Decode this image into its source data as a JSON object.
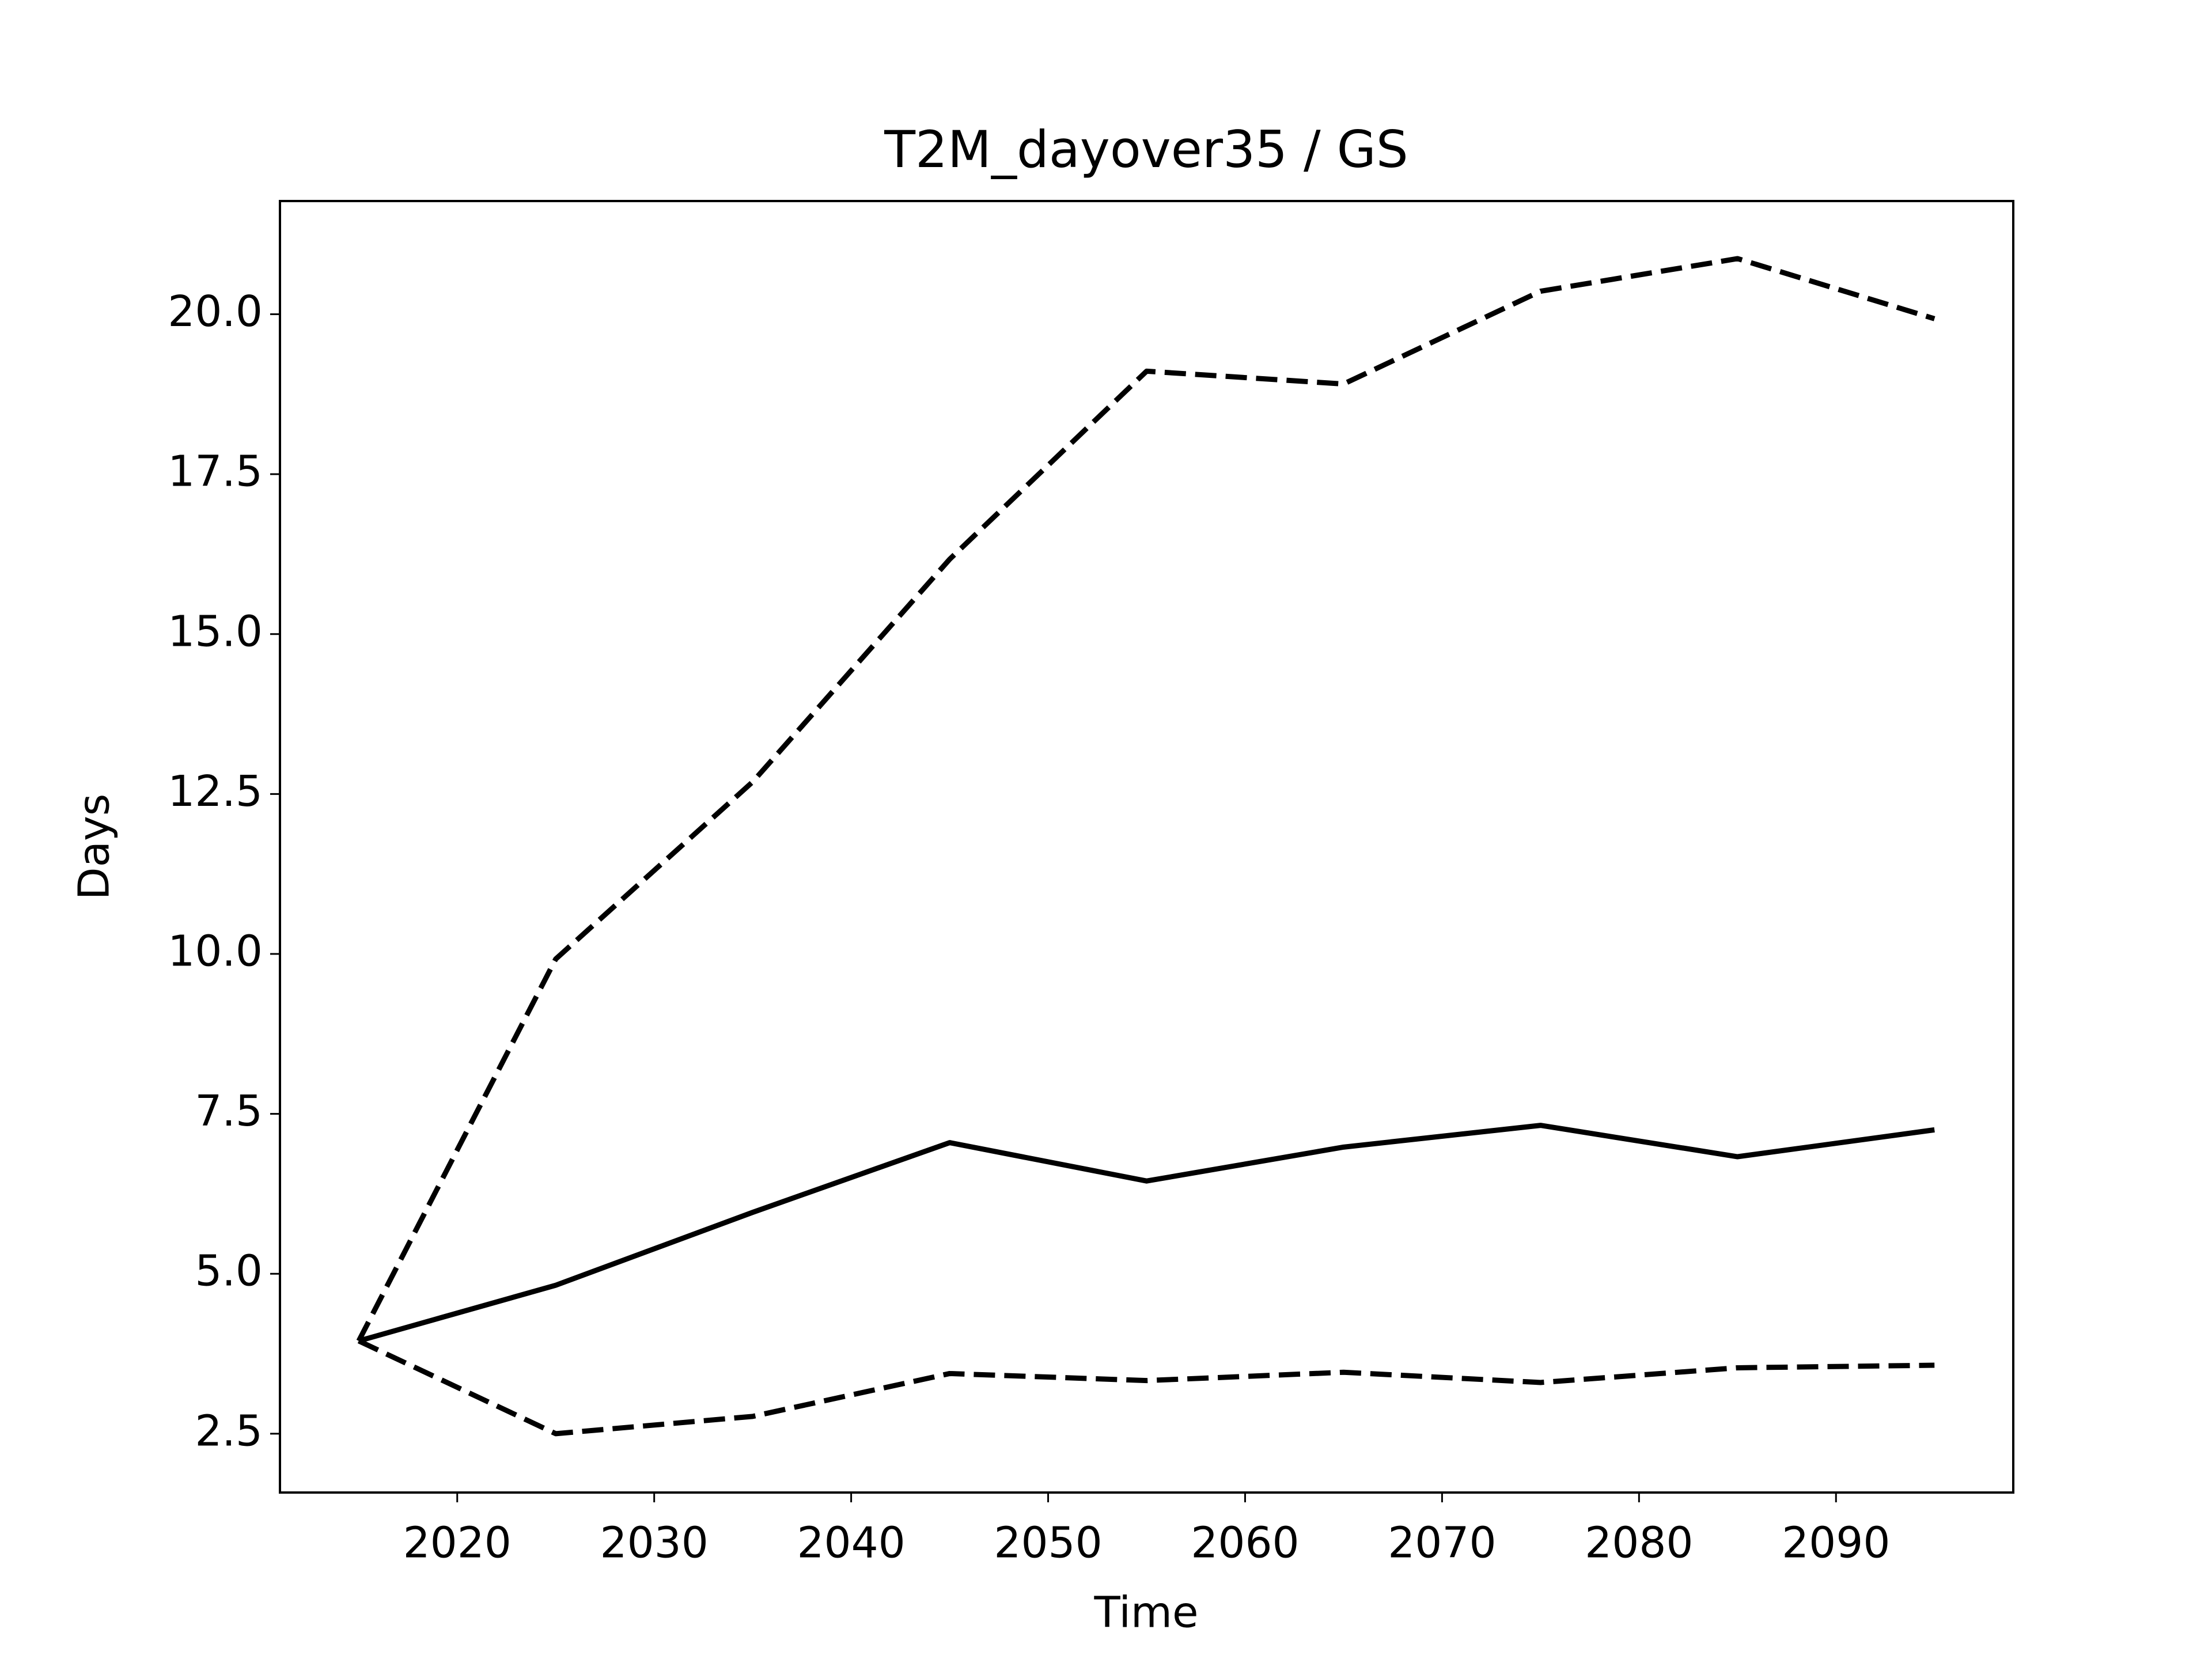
{
  "chart_data": {
    "type": "line",
    "title": "T2M_dayover35 / GS",
    "xlabel": "Time",
    "ylabel": "Days",
    "x": [
      2015,
      2025,
      2035,
      2045,
      2055,
      2065,
      2075,
      2085,
      2095
    ],
    "series": [
      {
        "color": "#000000",
        "linestyle": "solid",
        "values": [
          3.95,
          4.82,
          5.96,
          7.05,
          6.45,
          6.98,
          7.32,
          6.83,
          7.25
        ]
      },
      {
        "color": "#000000",
        "linestyle": "dashed",
        "values": [
          3.95,
          9.92,
          12.69,
          16.17,
          19.11,
          18.91,
          20.36,
          20.87,
          19.93
        ]
      },
      {
        "color": "#000000",
        "linestyle": "dashed",
        "values": [
          3.95,
          2.5,
          2.77,
          3.44,
          3.33,
          3.46,
          3.3,
          3.53,
          3.57
        ]
      }
    ],
    "xlim": [
      2011,
      2099
    ],
    "xticks": [
      2020,
      2030,
      2040,
      2050,
      2060,
      2070,
      2080,
      2090
    ],
    "ylim": [
      1.58,
      21.77
    ],
    "yticks": [
      2.5,
      {
        "value": 5,
        "label": "5.0"
      },
      7.5,
      {
        "value": 10,
        "label": "10.0"
      },
      12.5,
      {
        "value": 15,
        "label": "15.0"
      },
      17.5,
      {
        "value": 20,
        "label": "20.0"
      }
    ],
    "grid": false
  }
}
